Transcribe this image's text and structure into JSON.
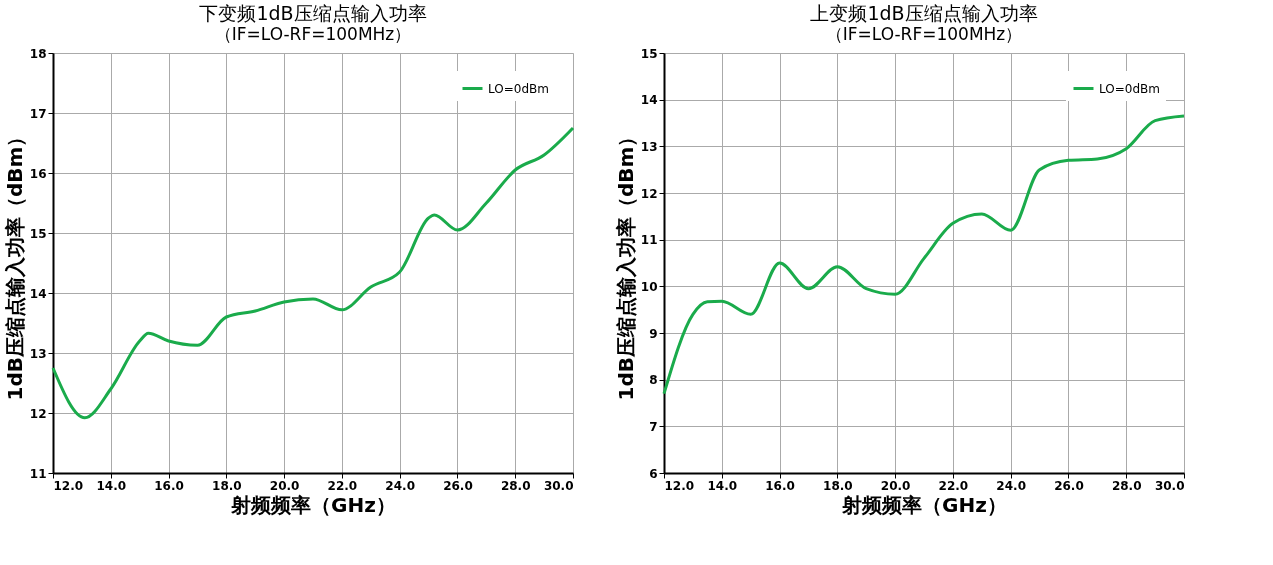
{
  "chart_data": [
    {
      "type": "line",
      "title": "下变频1dB压缩点输入功率",
      "subtitle": "（IF=LO-RF=100MHz）",
      "xlabel": "射频频率（GHz）",
      "ylabel": "1dB压缩点输入功率（dBm）",
      "series": [
        {
          "name": "LO=0dBm",
          "color": "#1aab4b",
          "x": [
            12.0,
            13.1,
            14.0,
            15.0,
            15.3,
            16.0,
            17.0,
            18.0,
            19.0,
            20.0,
            21.0,
            22.0,
            23.0,
            24.0,
            25.0,
            25.2,
            26.0,
            27.0,
            28.0,
            29.0,
            30.0
          ],
          "values": [
            12.75,
            11.92,
            12.4,
            13.2,
            13.33,
            13.2,
            13.13,
            13.6,
            13.7,
            13.85,
            13.9,
            13.72,
            14.1,
            14.35,
            15.25,
            15.3,
            15.05,
            15.5,
            16.05,
            16.3,
            16.75
          ]
        }
      ],
      "xlim": [
        12,
        30
      ],
      "xticks": [
        {
          "value": 12,
          "label": "12.0"
        },
        {
          "value": 14,
          "label": "14.0"
        },
        {
          "value": 16,
          "label": "16.0"
        },
        {
          "value": 18,
          "label": "18.0"
        },
        {
          "value": 20,
          "label": "20.0"
        },
        {
          "value": 22,
          "label": "22.0"
        },
        {
          "value": 24,
          "label": "24.0"
        },
        {
          "value": 26,
          "label": "26.0"
        },
        {
          "value": 28,
          "label": "28.0"
        },
        {
          "value": 30,
          "label": "30.0"
        }
      ],
      "ylim": [
        11,
        18
      ],
      "yticks": [
        11,
        12,
        13,
        14,
        15,
        16,
        17,
        18
      ],
      "grid": true,
      "legend": "top right",
      "marker": "none",
      "line_style": "solid"
    },
    {
      "type": "line",
      "title": "上变频1dB压缩点输入功率",
      "subtitle": "（IF=LO-RF=100MHz）",
      "xlabel": "射频频率（GHz）",
      "ylabel": "1dB压缩点输入功率（dBm）",
      "series": [
        {
          "name": "LO=0dBm",
          "color": "#1aab4b",
          "x": [
            12.0,
            13.0,
            13.5,
            14.0,
            15.0,
            16.0,
            17.0,
            18.0,
            19.0,
            20.0,
            21.0,
            22.0,
            23.0,
            24.0,
            25.0,
            26.0,
            27.0,
            28.0,
            29.0,
            30.0
          ],
          "values": [
            7.7,
            9.4,
            9.67,
            9.68,
            9.4,
            10.5,
            9.95,
            10.42,
            9.95,
            9.83,
            10.6,
            11.35,
            11.55,
            11.2,
            12.5,
            12.7,
            12.73,
            12.95,
            13.55,
            13.65
          ]
        }
      ],
      "xlim": [
        12,
        30
      ],
      "xticks": [
        {
          "value": 12,
          "label": "12.0"
        },
        {
          "value": 14,
          "label": "14.0"
        },
        {
          "value": 16,
          "label": "16.0"
        },
        {
          "value": 18,
          "label": "18.0"
        },
        {
          "value": 20,
          "label": "20.0"
        },
        {
          "value": 22,
          "label": "22.0"
        },
        {
          "value": 24,
          "label": "24.0"
        },
        {
          "value": 26,
          "label": "26.0"
        },
        {
          "value": 28,
          "label": "28.0"
        },
        {
          "value": 30,
          "label": "30.0"
        }
      ],
      "ylim": [
        6,
        15
      ],
      "yticks": [
        6,
        7,
        8,
        9,
        10,
        11,
        12,
        13,
        14,
        15
      ],
      "grid": true,
      "legend": "top right",
      "marker": "none",
      "line_style": "solid"
    }
  ]
}
